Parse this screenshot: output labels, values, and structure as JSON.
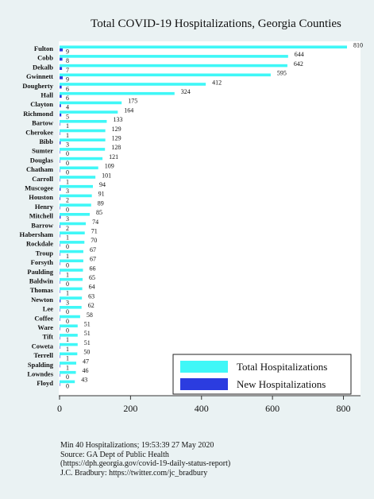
{
  "chart_data": {
    "type": "bar",
    "orientation": "horizontal",
    "title": "Total COVID-19 Hospitalizations, Georgia Counties",
    "categories": [
      "Fulton",
      "Cobb",
      "Dekalb",
      "Gwinnett",
      "Dougherty",
      "Hall",
      "Clayton",
      "Richmond",
      "Bartow",
      "Cherokee",
      "Bibb",
      "Sumter",
      "Douglas",
      "Chatham",
      "Carroll",
      "Muscogee",
      "Houston",
      "Henry",
      "Mitchell",
      "Barrow",
      "Habersham",
      "Rockdale",
      "Troup",
      "Forsyth",
      "Paulding",
      "Baldwin",
      "Thomas",
      "Newton",
      "Lee",
      "Coffee",
      "Ware",
      "Tift",
      "Coweta",
      "Terrell",
      "Spalding",
      "Lowndes",
      "Floyd"
    ],
    "series": [
      {
        "name": "Total Hospitalizations",
        "color": "#3ff7f7",
        "values": [
          810,
          644,
          642,
          595,
          412,
          324,
          175,
          164,
          133,
          129,
          129,
          128,
          121,
          109,
          101,
          94,
          91,
          89,
          85,
          74,
          71,
          70,
          67,
          67,
          66,
          65,
          64,
          63,
          62,
          58,
          51,
          51,
          51,
          50,
          47,
          46,
          43
        ]
      },
      {
        "name": "New Hospitalizations",
        "color": "#2b3ce0",
        "values": [
          9,
          8,
          7,
          9,
          6,
          6,
          4,
          5,
          1,
          1,
          3,
          0,
          0,
          0,
          1,
          3,
          2,
          0,
          3,
          2,
          1,
          0,
          1,
          0,
          1,
          0,
          1,
          3,
          0,
          0,
          0,
          1,
          1,
          1,
          1,
          0,
          0
        ]
      }
    ],
    "xlim": [
      0,
      850
    ],
    "xticks": [
      0,
      200,
      400,
      600,
      800
    ],
    "grid": false,
    "legend_position": "bottom-right"
  },
  "notes": [
    "Min 40 Hospitalizations; 19:53:39  27 May 2020",
    "Source: GA Dept of Public Health",
    "(https://dph.georgia.gov/covid-19-daily-status-report)",
    "J.C. Bradbury: https://twitter.com/jc_bradbury"
  ]
}
